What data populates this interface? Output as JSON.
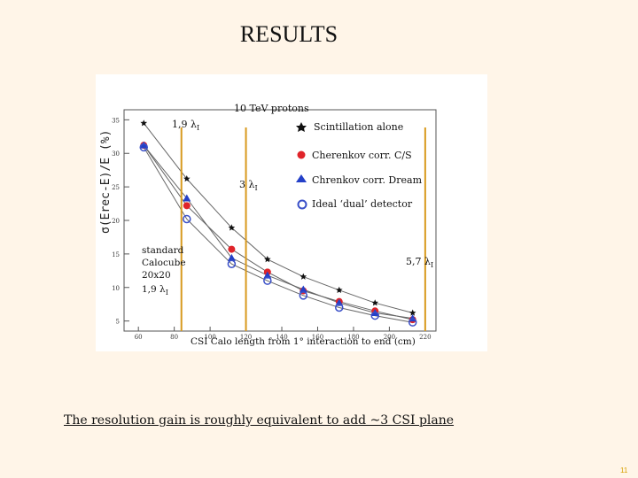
{
  "slide": {
    "title": "RESULTS",
    "footer": "The resolution gain is roughly equivalent  to  add  ~3  CSI plane ",
    "page_number": "11"
  },
  "chart_data": {
    "type": "scatter",
    "title": "10 TeV protons",
    "xlabel": "CSI Calo length from 1° interaction to end (cm)",
    "ylabel": "σ(Erec-E)/E  (%)",
    "xlim": [
      52,
      226
    ],
    "ylim": [
      3.5,
      36.5
    ],
    "x_ticks": [
      60,
      80,
      100,
      120,
      140,
      160,
      180,
      200,
      220
    ],
    "y_ticks": [
      5,
      10,
      15,
      20,
      25,
      30,
      35
    ],
    "legend_position": "top-right",
    "series": [
      {
        "name": "Scintillation alone",
        "marker": "star",
        "color": "#111111",
        "x": [
          63,
          87,
          112,
          132,
          152,
          172,
          192,
          213
        ],
        "y": [
          34.5,
          26.2,
          18.9,
          14.2,
          11.6,
          9.6,
          7.7,
          6.2
        ]
      },
      {
        "name": "Cherenkov corr. C/S",
        "marker": "circle",
        "color": "#e0242a",
        "x": [
          63,
          87,
          112,
          132,
          152,
          172,
          192,
          213
        ],
        "y": [
          31.2,
          22.2,
          15.7,
          12.3,
          9.5,
          7.9,
          6.5,
          5.2
        ]
      },
      {
        "name": "Chrenkov corr.  Dream",
        "marker": "triangle",
        "color": "#2440c8",
        "x": [
          63,
          87,
          112,
          132,
          152,
          172,
          192,
          213
        ],
        "y": [
          31.2,
          23.3,
          14.4,
          11.8,
          9.7,
          7.7,
          6.2,
          5.4
        ]
      },
      {
        "name": "Ideal ‘dual’ detector",
        "marker": "open-circle",
        "color": "#3a50c8",
        "x": [
          63,
          87,
          112,
          132,
          152,
          172,
          192,
          213
        ],
        "y": [
          30.9,
          20.2,
          13.5,
          11.0,
          8.8,
          7.0,
          5.8,
          4.8
        ]
      }
    ],
    "annotations": [
      {
        "text": "1,9 λ",
        "sub": "I"
      },
      {
        "text": "3 λ",
        "sub": "I"
      },
      {
        "text": "5,7 λ",
        "sub": "I"
      },
      {
        "lines": [
          "standard",
          "Calocube",
          "20x20",
          "1,9 λ"
        ],
        "sub": "I"
      }
    ],
    "vertical_markers_x": [
      84,
      120,
      220
    ],
    "marker_line_color": "#d89a1e"
  }
}
